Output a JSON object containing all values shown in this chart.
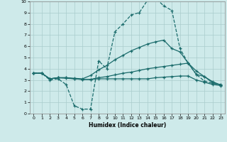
{
  "xlabel": "Humidex (Indice chaleur)",
  "background_color": "#ceeaea",
  "grid_color": "#aacccc",
  "line_color": "#1a6b6b",
  "xlim": [
    -0.5,
    23.5
  ],
  "ylim": [
    0,
    10
  ],
  "xticks": [
    0,
    1,
    2,
    3,
    4,
    5,
    6,
    7,
    8,
    9,
    10,
    11,
    12,
    13,
    14,
    15,
    16,
    17,
    18,
    19,
    20,
    21,
    22,
    23
  ],
  "yticks": [
    0,
    1,
    2,
    3,
    4,
    5,
    6,
    7,
    8,
    9,
    10
  ],
  "line1_x": [
    0,
    1,
    2,
    3,
    4,
    5,
    6,
    7,
    8,
    9,
    10,
    11,
    12,
    13,
    14,
    15,
    16,
    17,
    18,
    19,
    20,
    21,
    22,
    23
  ],
  "line1_y": [
    3.6,
    3.6,
    3.0,
    3.1,
    2.6,
    0.7,
    0.4,
    0.4,
    4.7,
    4.0,
    7.3,
    8.0,
    8.8,
    9.0,
    10.1,
    10.3,
    9.6,
    9.2,
    5.8,
    4.5,
    3.5,
    2.9,
    2.7,
    2.6
  ],
  "line2_x": [
    0,
    1,
    2,
    3,
    4,
    5,
    6,
    7,
    8,
    9,
    10,
    11,
    12,
    13,
    14,
    15,
    16,
    17,
    18,
    19,
    20,
    21,
    22,
    23
  ],
  "line2_y": [
    3.6,
    3.6,
    3.1,
    3.2,
    3.2,
    3.15,
    3.1,
    3.4,
    3.9,
    4.3,
    4.8,
    5.2,
    5.6,
    5.9,
    6.2,
    6.4,
    6.55,
    5.8,
    5.5,
    4.5,
    3.5,
    3.3,
    2.85,
    2.55
  ],
  "line3_x": [
    0,
    1,
    2,
    3,
    4,
    5,
    6,
    7,
    8,
    9,
    10,
    11,
    12,
    13,
    14,
    15,
    16,
    17,
    18,
    19,
    20,
    21,
    22,
    23
  ],
  "line3_y": [
    3.6,
    3.6,
    3.1,
    3.2,
    3.2,
    3.1,
    3.05,
    3.05,
    3.2,
    3.3,
    3.45,
    3.6,
    3.7,
    3.85,
    4.0,
    4.1,
    4.2,
    4.3,
    4.4,
    4.5,
    3.8,
    3.3,
    2.75,
    2.55
  ],
  "line4_x": [
    0,
    1,
    2,
    3,
    4,
    5,
    6,
    7,
    8,
    9,
    10,
    11,
    12,
    13,
    14,
    15,
    16,
    17,
    18,
    19,
    20,
    21,
    22,
    23
  ],
  "line4_y": [
    3.6,
    3.6,
    3.1,
    3.2,
    3.15,
    3.1,
    3.05,
    3.05,
    3.1,
    3.1,
    3.1,
    3.1,
    3.1,
    3.1,
    3.1,
    3.2,
    3.25,
    3.3,
    3.35,
    3.35,
    3.0,
    2.8,
    2.6,
    2.5
  ]
}
